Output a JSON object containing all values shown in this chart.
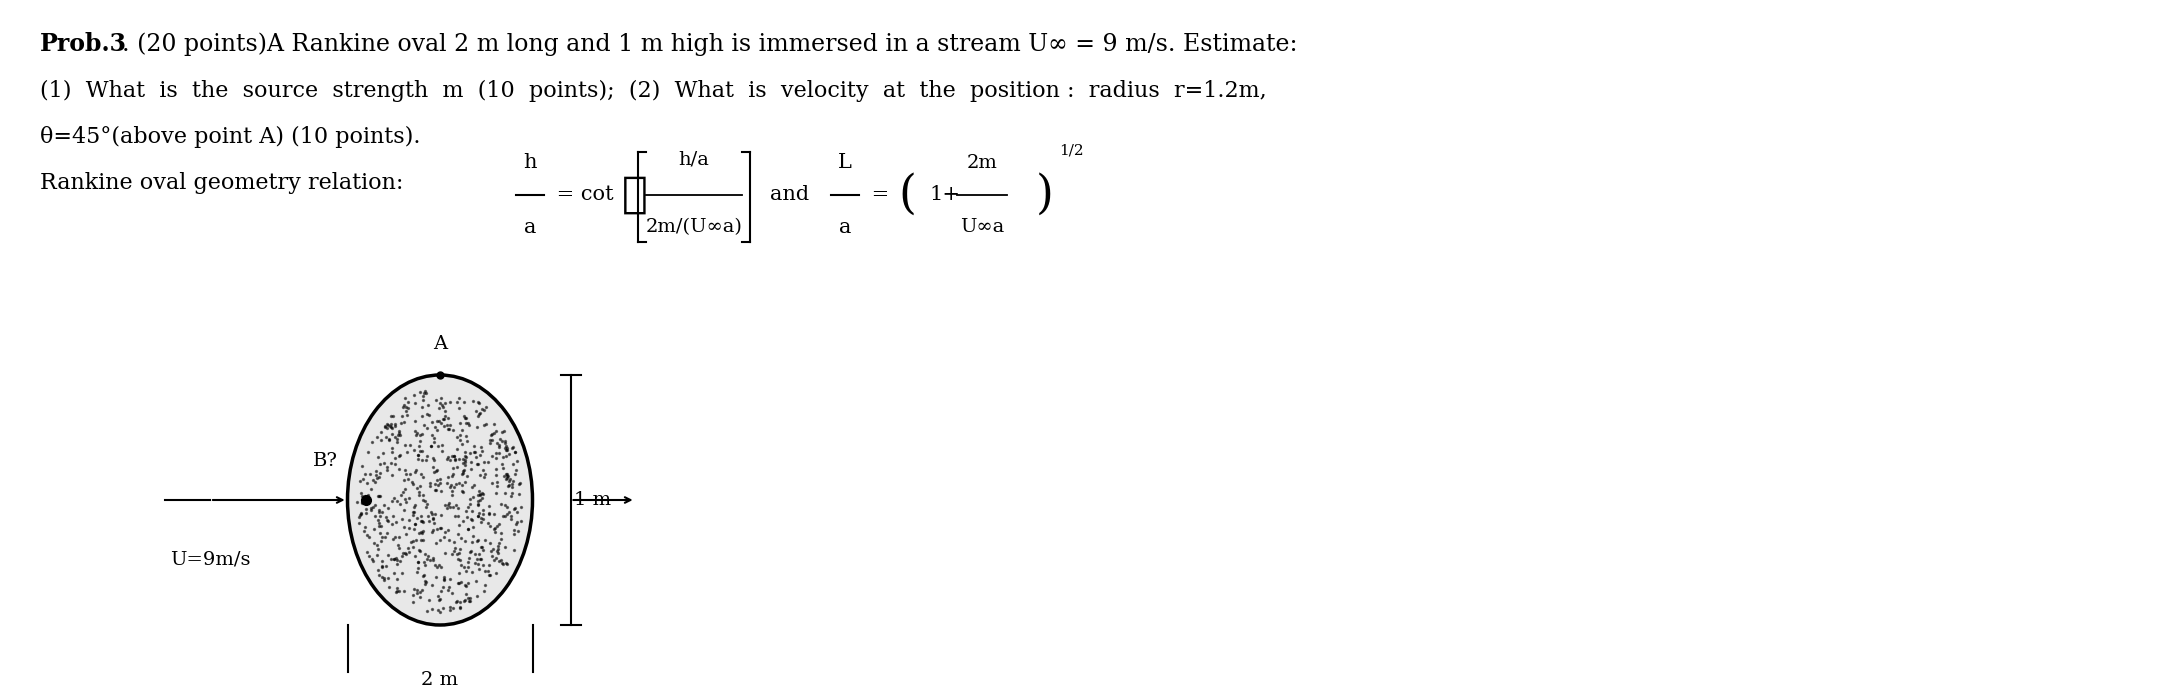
{
  "background_color": "#ffffff",
  "text_color": "#000000",
  "font_size_title": 17,
  "font_size_body": 16,
  "font_size_formula": 15,
  "font_size_diagram": 14,
  "prob_bold": "Prob.3",
  "prob_rest": ". (20 points)A Rankine oval 2 m long and 1 m high is immersed in a stream U∞ = 9 m/s. Estimate:",
  "line2": "(1)  What  is  the  source  strength  m  (10  points);  (2)  What  is  velocity  at  the  position :  radius  r=1.2m,",
  "line3": "θ=45°(above point A) (10 points).",
  "line4": "Rankine oval geometry relation:",
  "diag_A": "A",
  "diag_B": "B?",
  "diag_U": "U=9m/s",
  "diag_1m": "1 m",
  "diag_2m": "2 m"
}
